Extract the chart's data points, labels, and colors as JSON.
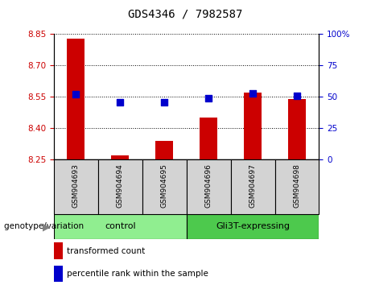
{
  "title": "GDS4346 / 7982587",
  "samples": [
    "GSM904693",
    "GSM904694",
    "GSM904695",
    "GSM904696",
    "GSM904697",
    "GSM904698"
  ],
  "red_values": [
    8.83,
    8.27,
    8.34,
    8.45,
    8.57,
    8.54
  ],
  "blue_values": [
    52,
    46,
    46,
    49,
    53,
    51
  ],
  "ylim_left": [
    8.25,
    8.85
  ],
  "ylim_right": [
    0,
    100
  ],
  "yticks_left": [
    8.25,
    8.4,
    8.55,
    8.7,
    8.85
  ],
  "yticks_right": [
    0,
    25,
    50,
    75,
    100
  ],
  "groups": [
    {
      "label": "control",
      "samples": [
        0,
        1,
        2
      ],
      "color": "#90ee90"
    },
    {
      "label": "Gli3T-expressing",
      "samples": [
        3,
        4,
        5
      ],
      "color": "#4dc94d"
    }
  ],
  "bar_color": "#cc0000",
  "dot_color": "#0000cc",
  "bar_width": 0.4,
  "dot_size": 40,
  "grid_color": "black",
  "tick_color_left": "#cc0000",
  "tick_color_right": "#0000cc",
  "xlabel": "genotype/variation",
  "legend_items": [
    {
      "label": "transformed count",
      "color": "#cc0000"
    },
    {
      "label": "percentile rank within the sample",
      "color": "#0000cc"
    }
  ],
  "sample_label_fontsize": 6.5,
  "group_fontsize": 8,
  "title_fontsize": 10,
  "sample_box_color": "#d3d3d3"
}
